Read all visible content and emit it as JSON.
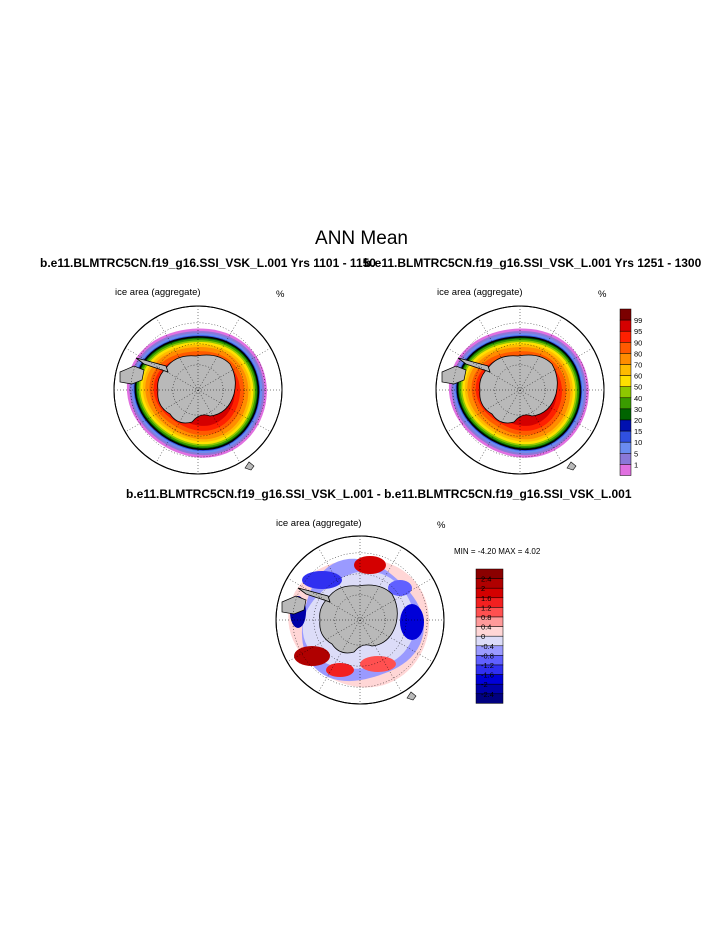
{
  "figure": {
    "main_title": "ANN Mean",
    "top_left_title": "b.e11.BLMTRC5CN.f19_g16.SSI_VSK_L.001  Yrs 1101 - 1150",
    "top_right_title": "b.e11.BLMTRC5CN.f19_g16.SSI_VSK_L.001  Yrs 1251 - 1300",
    "diff_title": "b.e11.BLMTRC5CN.f19_g16.SSI_VSK_L.001 - b.e11.BLMTRC5CN.f19_g16.SSI_VSK_L.001"
  },
  "panels": [
    {
      "label": "ice area  (aggregate)",
      "unit": "%"
    },
    {
      "label": "ice area  (aggregate)",
      "unit": "%"
    },
    {
      "label": "ice area  (aggregate)",
      "unit": "%",
      "min_max": "MIN =  -4.20 MAX =   4.02"
    }
  ],
  "colors": {
    "land": "#b9b9b9",
    "abs_scale": [
      "#7b0000",
      "#d40000",
      "#ff2000",
      "#ff5a00",
      "#ff8c00",
      "#ffbb00",
      "#ffe000",
      "#8ec800",
      "#3a9c00",
      "#006400",
      "#0010b0",
      "#3050e0",
      "#6a8cf0",
      "#8a78d8",
      "#e070e0"
    ],
    "diff_scale": [
      "#8b0000",
      "#b00000",
      "#d40000",
      "#f22020",
      "#ff5050",
      "#ff9a9a",
      "#ffd6d6",
      "#dcdcf8",
      "#9a9aff",
      "#6060ff",
      "#3030f0",
      "#0000d8",
      "#0000a8",
      "#000080"
    ]
  },
  "chart_data": [
    {
      "type": "heatmap",
      "title": "b.e11.BLMTRC5CN.f19_g16.SSI_VSK_L.001  Yrs 1101 - 1150",
      "label": "ice area  (aggregate)",
      "unit": "%",
      "projection": "south polar stereographic",
      "colorbar_levels": [
        "1",
        "5",
        "10",
        "15",
        "20",
        "30",
        "40",
        "50",
        "60",
        "70",
        "80",
        "90",
        "95",
        "99"
      ]
    },
    {
      "type": "heatmap",
      "title": "b.e11.BLMTRC5CN.f19_g16.SSI_VSK_L.001  Yrs 1251 - 1300",
      "label": "ice area  (aggregate)",
      "unit": "%",
      "projection": "south polar stereographic",
      "colorbar_levels": [
        "1",
        "5",
        "10",
        "15",
        "20",
        "30",
        "40",
        "50",
        "60",
        "70",
        "80",
        "90",
        "95",
        "99"
      ]
    },
    {
      "type": "heatmap",
      "title": "b.e11.BLMTRC5CN.f19_g16.SSI_VSK_L.001 - b.e11.BLMTRC5CN.f19_g16.SSI_VSK_L.001",
      "label": "ice area  (aggregate)",
      "unit": "%",
      "projection": "south polar stereographic",
      "min": -4.2,
      "max": 4.02,
      "colorbar_levels": [
        "-2.4",
        "-2",
        "-1.6",
        "-1.2",
        "-0.8",
        "-0.4",
        "0",
        "0.4",
        "0.8",
        "1.2",
        "1.6",
        "2",
        "2.4"
      ]
    }
  ]
}
